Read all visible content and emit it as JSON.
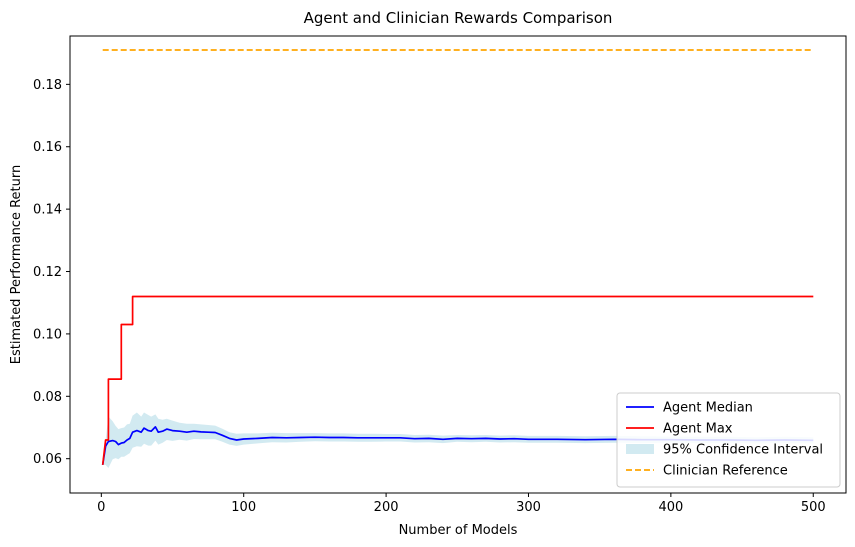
{
  "chart_data": {
    "type": "line",
    "title": "Agent and Clinician Rewards Comparison",
    "xlabel": "Number of Models",
    "ylabel": "Estimated Performance Return",
    "xlim": [
      -22,
      523
    ],
    "ylim": [
      0.049,
      0.1955
    ],
    "xticks": [
      0,
      100,
      200,
      300,
      400,
      500
    ],
    "yticks": [
      0.06,
      0.08,
      0.1,
      0.12,
      0.14,
      0.16,
      0.18
    ],
    "legend_position": "lower right",
    "series": [
      {
        "name": "Agent Median",
        "kind": "line",
        "color": "#0000ff",
        "x": [
          1,
          3,
          5,
          8,
          10,
          12,
          14,
          16,
          18,
          20,
          22,
          25,
          28,
          30,
          33,
          35,
          38,
          40,
          43,
          46,
          50,
          55,
          60,
          65,
          70,
          75,
          80,
          85,
          90,
          95,
          100,
          110,
          120,
          130,
          140,
          150,
          160,
          170,
          180,
          190,
          200,
          210,
          220,
          230,
          240,
          250,
          260,
          270,
          280,
          290,
          300,
          320,
          340,
          360,
          380,
          400,
          420,
          440,
          460,
          480,
          500
        ],
        "y": [
          0.058,
          0.064,
          0.0655,
          0.0658,
          0.0655,
          0.0645,
          0.065,
          0.0652,
          0.066,
          0.0665,
          0.0685,
          0.069,
          0.0685,
          0.0698,
          0.069,
          0.0688,
          0.0702,
          0.0685,
          0.0688,
          0.0695,
          0.069,
          0.0688,
          0.0685,
          0.0688,
          0.0686,
          0.0685,
          0.0684,
          0.0675,
          0.0665,
          0.066,
          0.0663,
          0.0665,
          0.0668,
          0.0667,
          0.0668,
          0.0669,
          0.0668,
          0.0668,
          0.0667,
          0.0667,
          0.0667,
          0.0667,
          0.0664,
          0.0665,
          0.0662,
          0.0665,
          0.0664,
          0.0665,
          0.0663,
          0.0664,
          0.0662,
          0.0662,
          0.0661,
          0.0662,
          0.0661,
          0.0661,
          0.066,
          0.066,
          0.0659,
          0.066,
          0.0659
        ]
      },
      {
        "name": "Agent Max",
        "kind": "step",
        "color": "#ff0000",
        "x": [
          1,
          3,
          3,
          5,
          5,
          14,
          14,
          22,
          22,
          500
        ],
        "y": [
          0.058,
          0.066,
          0.066,
          0.066,
          0.0855,
          0.0855,
          0.103,
          0.103,
          0.112,
          0.112
        ]
      },
      {
        "name": "95% Confidence Interval",
        "kind": "band",
        "color": "#add8e6",
        "x": [
          1,
          3,
          5,
          8,
          10,
          12,
          14,
          16,
          18,
          20,
          22,
          25,
          28,
          30,
          33,
          35,
          38,
          40,
          43,
          46,
          50,
          55,
          60,
          65,
          70,
          75,
          80,
          85,
          90,
          95,
          100,
          110,
          120,
          130,
          140,
          150,
          160,
          170,
          180,
          190,
          200,
          210,
          220,
          230,
          240,
          250,
          260,
          270,
          280,
          290,
          300,
          320,
          340,
          360,
          380,
          400,
          420,
          440,
          460,
          480,
          500
        ],
        "upper": [
          0.058,
          0.066,
          0.0735,
          0.072,
          0.0705,
          0.0695,
          0.0698,
          0.07,
          0.071,
          0.0712,
          0.0738,
          0.0748,
          0.0735,
          0.0748,
          0.074,
          0.0735,
          0.0742,
          0.0728,
          0.0725,
          0.0728,
          0.0722,
          0.0715,
          0.0712,
          0.0712,
          0.071,
          0.0708,
          0.0706,
          0.0696,
          0.0685,
          0.068,
          0.0681,
          0.0681,
          0.0683,
          0.0682,
          0.0682,
          0.0682,
          0.0681,
          0.0681,
          0.068,
          0.068,
          0.0679,
          0.0679,
          0.0676,
          0.0677,
          0.0674,
          0.0676,
          0.0675,
          0.0676,
          0.0674,
          0.0675,
          0.0673,
          0.0673,
          0.0672,
          0.0673,
          0.0672,
          0.0671,
          0.067,
          0.067,
          0.0669,
          0.067,
          0.0669
        ],
        "lower": [
          0.058,
          0.058,
          0.057,
          0.0598,
          0.0602,
          0.0598,
          0.0606,
          0.0606,
          0.0612,
          0.0618,
          0.0635,
          0.064,
          0.0638,
          0.0648,
          0.0642,
          0.0642,
          0.0658,
          0.0645,
          0.0651,
          0.066,
          0.0657,
          0.0661,
          0.0658,
          0.0663,
          0.0662,
          0.0662,
          0.0662,
          0.0654,
          0.0645,
          0.0641,
          0.0645,
          0.0649,
          0.0653,
          0.0652,
          0.0654,
          0.0656,
          0.0655,
          0.0655,
          0.0654,
          0.0654,
          0.0655,
          0.0655,
          0.0652,
          0.0653,
          0.065,
          0.0654,
          0.0653,
          0.0654,
          0.0652,
          0.0653,
          0.0651,
          0.0651,
          0.065,
          0.0651,
          0.065,
          0.0651,
          0.065,
          0.065,
          0.0649,
          0.065,
          0.0649
        ]
      },
      {
        "name": "Clinician Reference",
        "kind": "dashed",
        "color": "#ffa500",
        "x": [
          1,
          500
        ],
        "y": [
          0.191,
          0.191
        ]
      }
    ]
  }
}
